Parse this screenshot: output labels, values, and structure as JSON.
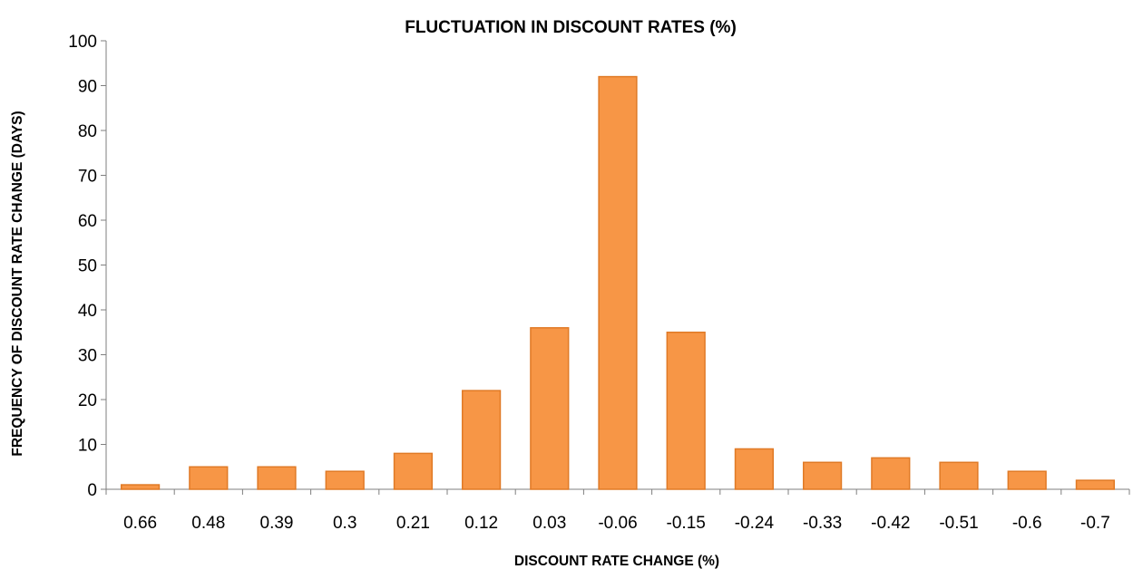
{
  "chart_data": {
    "type": "bar",
    "title": "FLUCTUATION IN DISCOUNT RATES (%)",
    "xlabel": "DISCOUNT RATE CHANGE (%)",
    "ylabel": "FREQUENCY OF DISCOUNT RATE CHANGE  (DAYS)",
    "categories": [
      "0.66",
      "0.48",
      "0.39",
      "0.3",
      "0.21",
      "0.12",
      "0.03",
      "-0.06",
      "-0.15",
      "-0.24",
      "-0.33",
      "-0.42",
      "-0.51",
      "-0.6",
      "-0.7"
    ],
    "values": [
      1,
      5,
      5,
      4,
      8,
      22,
      36,
      92,
      35,
      9,
      6,
      7,
      6,
      4,
      2
    ],
    "ylim": [
      0,
      100
    ],
    "yticks": [
      0,
      10,
      20,
      30,
      40,
      50,
      60,
      70,
      80,
      90,
      100
    ],
    "grid": false,
    "legend": "none",
    "colors": {
      "bar_fill": "#f79646",
      "bar_stroke": "#e07a26",
      "axis": "#7f7f7f"
    }
  }
}
